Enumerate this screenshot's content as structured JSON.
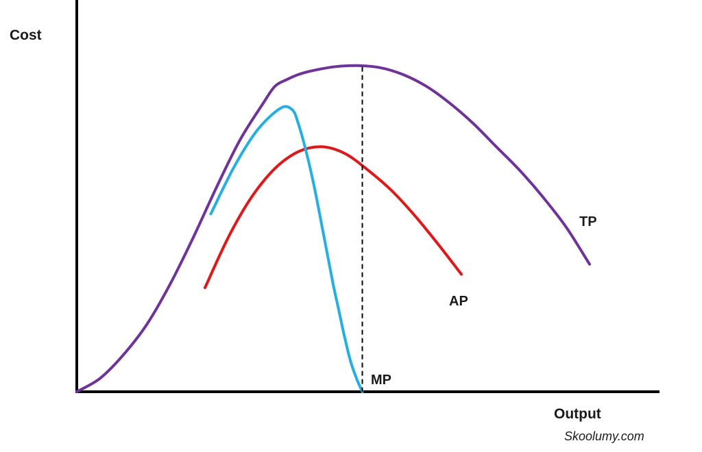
{
  "chart_data": {
    "type": "line",
    "title": "",
    "xlabel": "Output",
    "ylabel": "Cost",
    "grid": false,
    "xlim": [
      0,
      100
    ],
    "ylim": [
      0,
      100
    ],
    "series": [
      {
        "name": "TP",
        "color": "#7030a0",
        "x": [
          0,
          4,
          8,
          12,
          16,
          20,
          24,
          28,
          32,
          34,
          36,
          38,
          40,
          44,
          48,
          52,
          56,
          60,
          64,
          68,
          72,
          76,
          80,
          84,
          88
        ],
        "y": [
          0,
          4,
          11,
          20,
          32,
          46,
          61,
          75,
          86,
          91,
          93,
          94.5,
          95.5,
          96.8,
          97.2,
          96.6,
          94.5,
          91,
          86,
          80,
          73,
          66,
          58,
          49,
          38
        ]
      },
      {
        "name": "AP",
        "color": "#ee1111",
        "x": [
          22,
          26,
          30,
          34,
          38,
          42,
          46,
          50,
          54,
          58,
          62,
          66
        ],
        "y": [
          31,
          46,
          58,
          66.5,
          71.5,
          73,
          71,
          66,
          60,
          52.5,
          44,
          35
        ]
      },
      {
        "name": "MP",
        "color": "#1fb0ea",
        "x": [
          23,
          27,
          31,
          35,
          37,
          38,
          39,
          40,
          41,
          42,
          43,
          44,
          45,
          46,
          47,
          48,
          49
        ],
        "y": [
          53,
          67,
          78,
          84.5,
          84,
          80,
          74,
          67,
          59,
          50,
          41,
          32,
          24,
          16,
          9,
          4,
          0
        ]
      }
    ],
    "annotations": [
      {
        "type": "vertical-dashed-line",
        "x": 49,
        "y_top": 96.8
      }
    ],
    "source_text": "Skoolumy.com"
  }
}
